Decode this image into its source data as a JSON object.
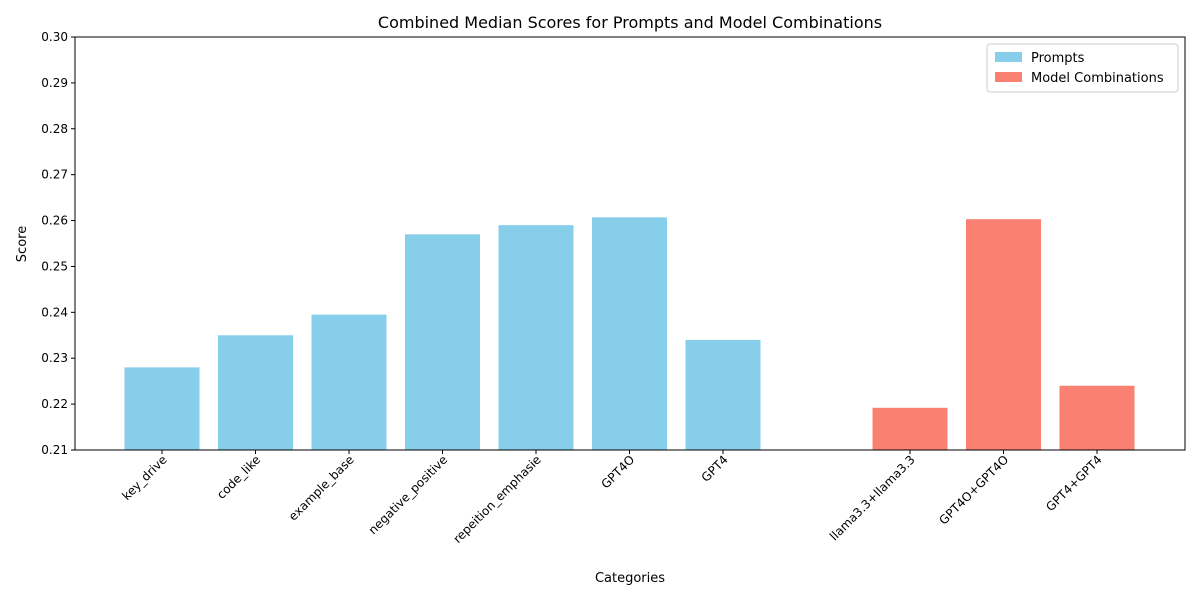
{
  "chart_data": {
    "type": "bar",
    "title": "Combined Median Scores for Prompts and Model Combinations",
    "xlabel": "Categories",
    "ylabel": "Score",
    "ylim": [
      0.21,
      0.3
    ],
    "yticks": [
      0.21,
      0.22,
      0.23,
      0.24,
      0.25,
      0.26,
      0.27,
      0.28,
      0.29,
      0.3
    ],
    "legend_position": "top-right",
    "grid": false,
    "series": [
      {
        "name": "Prompts",
        "color": "#87CEEB",
        "categories": [
          "key_drive",
          "code_like",
          "example_base",
          "negative_positive",
          "repeition_emphasie",
          "GPT4O",
          "GPT4"
        ],
        "values": [
          0.228,
          0.235,
          0.2395,
          0.257,
          0.259,
          0.2607,
          0.234
        ]
      },
      {
        "name": "Model Combinations",
        "color": "#FA8072",
        "categories": [
          "llama3.3+llama3.3",
          "GPT4O+GPT4O",
          "GPT4+GPT4"
        ],
        "values": [
          0.2192,
          0.2603,
          0.224
        ]
      }
    ]
  }
}
